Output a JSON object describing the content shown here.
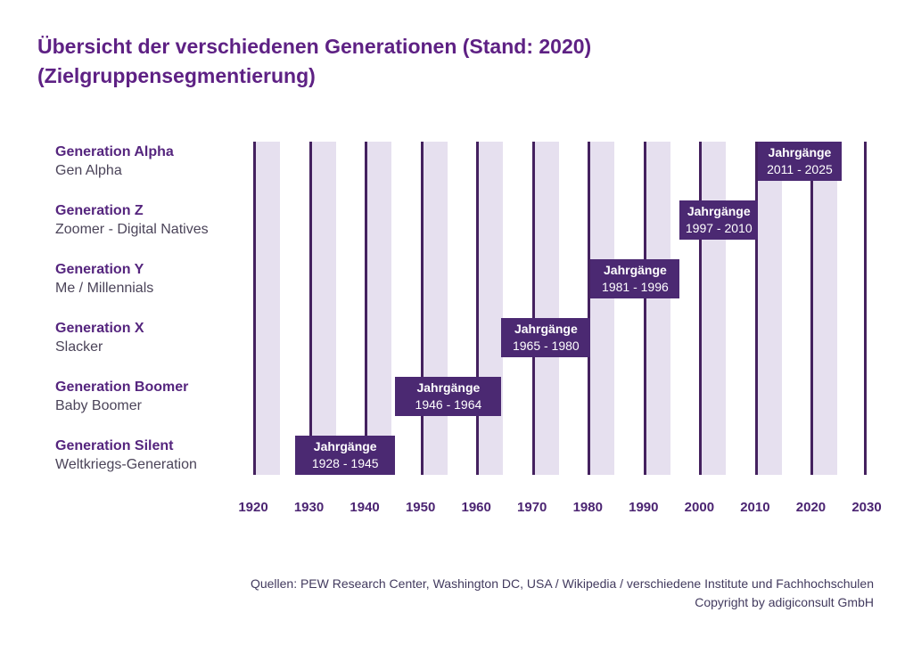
{
  "title": {
    "line1": "Übersicht der verschiedenen Generationen (Stand: 2020)",
    "line2": "(Zielgruppensegmentierung)"
  },
  "chart_data": {
    "type": "bar",
    "subtype": "horizontal-timeline-gantt",
    "title": "Übersicht der verschiedenen Generationen (Stand: 2020) (Zielgruppensegmentierung)",
    "x_axis": {
      "min": 1920,
      "max": 2030,
      "ticks": [
        1920,
        1930,
        1940,
        1950,
        1960,
        1970,
        1980,
        1990,
        2000,
        2010,
        2020,
        2030
      ]
    },
    "bar_word": "Jahrgänge",
    "grid": "decade vertical lines with lavender stripes",
    "rows": [
      {
        "name": "Generation Alpha",
        "subtitle": "Gen Alpha",
        "bar_label": "Jahrgänge",
        "years": "2011 - 2025",
        "start": 2011,
        "end": 2025,
        "span": [
          2010.5,
          2025.5
        ]
      },
      {
        "name": "Generation Z",
        "subtitle": "Zoomer - Digital Natives",
        "bar_label": "Jahrgänge",
        "years": "1997 - 2010",
        "start": 1997,
        "end": 2010,
        "span": [
          1996.5,
          2010.5
        ]
      },
      {
        "name": "Generation Y",
        "subtitle": "Me / Millennials",
        "bar_label": "Jahrgänge",
        "years": "1981 - 1996",
        "start": 1981,
        "end": 1996,
        "span": [
          1980.5,
          1996.5
        ]
      },
      {
        "name": "Generation X",
        "subtitle": "Slacker",
        "bar_label": "Jahrgänge",
        "years": "1965 - 1980",
        "start": 1965,
        "end": 1980,
        "span": [
          1964.5,
          1980.5
        ]
      },
      {
        "name": "Generation Boomer",
        "subtitle": "Baby Boomer",
        "bar_label": "Jahrgänge",
        "years": "1946 - 1964",
        "start": 1946,
        "end": 1964,
        "span": [
          1945.5,
          1964.5
        ]
      },
      {
        "name": "Generation Silent",
        "subtitle": "Weltkriegs-Generation",
        "bar_label": "Jahrgänge",
        "years": "1928 - 1945",
        "start": 1928,
        "end": 1945,
        "span": [
          1927.5,
          1945.5
        ]
      }
    ]
  },
  "footer": {
    "line1": "Quellen: PEW Research Center, Washington DC, USA / Wikipedia / verschiedene Institute und Fachhochschulen",
    "line2": "Copyright by adigiconsult GmbH"
  },
  "colors": {
    "title": "#5e2184",
    "bar": "#4b2972",
    "line": "#44215f",
    "stripe": "#e6e0ef",
    "gen_bold": "#55257e",
    "gen_sub": "#4b4459",
    "axis": "#4b2472",
    "footer": "#423a5e",
    "background": "#ffffff",
    "bar_text": "#ffffff"
  }
}
